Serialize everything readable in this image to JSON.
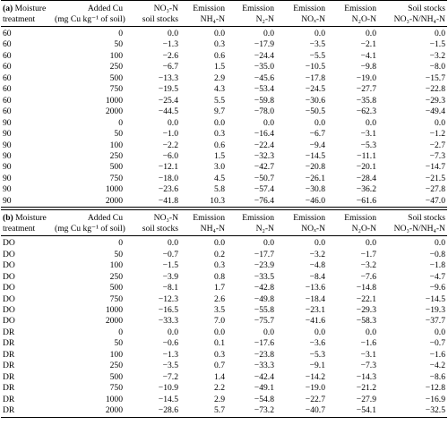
{
  "sections": [
    {
      "label": "(a)",
      "columns": [
        [
          "Moisture",
          "treatment"
        ],
        [
          "Added Cu",
          "(mg Cu kg⁻¹ of soil)"
        ],
        [
          "NO₃-N",
          "soil stocks"
        ],
        [
          "Emission",
          "NH₄-N"
        ],
        [
          "Emission",
          "N₂-N"
        ],
        [
          "Emission",
          "NOₓ-N"
        ],
        [
          "Emission",
          "N₂O-N"
        ],
        [
          "Soil stocks",
          "NO₃-N/NH₄-N"
        ]
      ],
      "rows": [
        [
          "60",
          "0",
          "0.0",
          "0.0",
          "0.0",
          "0.0",
          "0.0",
          "0.0"
        ],
        [
          "60",
          "50",
          "−1.3",
          "0.3",
          "−17.9",
          "−3.5",
          "−2.1",
          "−1.5"
        ],
        [
          "60",
          "100",
          "−2.6",
          "0.6",
          "−24.4",
          "−5.5",
          "−4.1",
          "−3.2"
        ],
        [
          "60",
          "250",
          "−6.7",
          "1.5",
          "−35.0",
          "−10.5",
          "−9.8",
          "−8.0"
        ],
        [
          "60",
          "500",
          "−13.3",
          "2.9",
          "−45.6",
          "−17.8",
          "−19.0",
          "−15.7"
        ],
        [
          "60",
          "750",
          "−19.5",
          "4.3",
          "−53.4",
          "−24.5",
          "−27.7",
          "−22.8"
        ],
        [
          "60",
          "1000",
          "−25.4",
          "5.5",
          "−59.8",
          "−30.6",
          "−35.8",
          "−29.3"
        ],
        [
          "60",
          "2000",
          "−44.5",
          "9.7",
          "−78.0",
          "−50.5",
          "−62.3",
          "−49.4"
        ],
        [
          "90",
          "0",
          "0.0",
          "0.0",
          "0.0",
          "0.0",
          "0.0",
          "0.0"
        ],
        [
          "90",
          "50",
          "−1.0",
          "0.3",
          "−16.4",
          "−6.7",
          "−3.1",
          "−1.2"
        ],
        [
          "90",
          "100",
          "−2.2",
          "0.6",
          "−22.4",
          "−9.4",
          "−5.3",
          "−2.7"
        ],
        [
          "90",
          "250",
          "−6.0",
          "1.5",
          "−32.3",
          "−14.5",
          "−11.1",
          "−7.3"
        ],
        [
          "90",
          "500",
          "−12.1",
          "3.0",
          "−42.7",
          "−20.8",
          "−20.1",
          "−14.7"
        ],
        [
          "90",
          "750",
          "−18.0",
          "4.5",
          "−50.7",
          "−26.1",
          "−28.4",
          "−21.5"
        ],
        [
          "90",
          "1000",
          "−23.6",
          "5.8",
          "−57.4",
          "−30.8",
          "−36.2",
          "−27.8"
        ],
        [
          "90",
          "2000",
          "−41.8",
          "10.3",
          "−76.4",
          "−46.0",
          "−61.6",
          "−47.0"
        ]
      ]
    },
    {
      "label": "(b)",
      "columns": [
        [
          "Moisture",
          "treatment"
        ],
        [
          "Added Cu",
          "(mg Cu kg⁻¹ of soil)"
        ],
        [
          "NO₃-N",
          "soil stocks"
        ],
        [
          "Emission",
          "NH₄-N"
        ],
        [
          "Emission",
          "N₂-N"
        ],
        [
          "Emission",
          "NOₓ-N"
        ],
        [
          "Emission",
          "N₂O-N"
        ],
        [
          "Soil stocks",
          "NO₃-N/NH₄-N"
        ]
      ],
      "rows": [
        [
          "DO",
          "0",
          "0.0",
          "0.0",
          "0.0",
          "0.0",
          "0.0",
          "0.0"
        ],
        [
          "DO",
          "50",
          "−0.7",
          "0.2",
          "−17.7",
          "−3.2",
          "−1.7",
          "−0.8"
        ],
        [
          "DO",
          "100",
          "−1.5",
          "0.3",
          "−23.9",
          "−4.8",
          "−3.2",
          "−1.8"
        ],
        [
          "DO",
          "250",
          "−3.9",
          "0.8",
          "−33.5",
          "−8.4",
          "−7.6",
          "−4.7"
        ],
        [
          "DO",
          "500",
          "−8.1",
          "1.7",
          "−42.8",
          "−13.6",
          "−14.8",
          "−9.6"
        ],
        [
          "DO",
          "750",
          "−12.3",
          "2.6",
          "−49.8",
          "−18.4",
          "−22.1",
          "−14.5"
        ],
        [
          "DO",
          "1000",
          "−16.5",
          "3.5",
          "−55.8",
          "−23.1",
          "−29.3",
          "−19.3"
        ],
        [
          "DO",
          "2000",
          "−33.3",
          "7.0",
          "−75.7",
          "−41.6",
          "−58.3",
          "−37.7"
        ],
        [
          "DR",
          "0",
          "0.0",
          "0.0",
          "0.0",
          "0.0",
          "0.0",
          "0.0"
        ],
        [
          "DR",
          "50",
          "−0.6",
          "0.1",
          "−17.6",
          "−3.6",
          "−1.6",
          "−0.7"
        ],
        [
          "DR",
          "100",
          "−1.3",
          "0.3",
          "−23.8",
          "−5.3",
          "−3.1",
          "−1.6"
        ],
        [
          "DR",
          "250",
          "−3.5",
          "0.7",
          "−33.3",
          "−9.1",
          "−7.3",
          "−4.2"
        ],
        [
          "DR",
          "500",
          "−7.2",
          "1.4",
          "−42.4",
          "−14.2",
          "−14.3",
          "−8.6"
        ],
        [
          "DR",
          "750",
          "−10.9",
          "2.2",
          "−49.1",
          "−19.0",
          "−21.2",
          "−12.8"
        ],
        [
          "DR",
          "1000",
          "−14.5",
          "2.9",
          "−54.8",
          "−22.7",
          "−27.9",
          "−16.9"
        ],
        [
          "DR",
          "2000",
          "−28.6",
          "5.7",
          "−73.2",
          "−40.7",
          "−54.1",
          "−32.5"
        ]
      ]
    }
  ]
}
